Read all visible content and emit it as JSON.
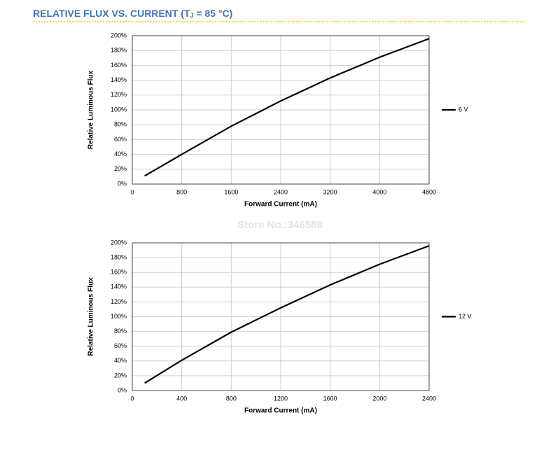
{
  "header": {
    "title_parts": [
      "RELATIVE FLUX VS. CURRENT (T",
      "J",
      " = 85 °C)"
    ]
  },
  "watermark": "Store No.:346588",
  "chart_data": [
    {
      "type": "line",
      "x_label": "Forward Current (mA)",
      "y_label": "Relative Luminous Flux",
      "x": [
        200,
        800,
        1600,
        2400,
        3200,
        4000,
        4800
      ],
      "series": [
        {
          "name": "6 V",
          "color": "#000000",
          "values": [
            11,
            40,
            78,
            112,
            143,
            171,
            196
          ]
        }
      ],
      "xlim": [
        0,
        4800
      ],
      "xticks": [
        0,
        800,
        1600,
        2400,
        3200,
        4000,
        4800
      ],
      "ylim": [
        0,
        200
      ],
      "yticks": [
        {
          "value": 0,
          "label": "0%"
        },
        {
          "value": 20,
          "label": "20%"
        },
        {
          "value": 40,
          "label": "40%"
        },
        {
          "value": 60,
          "label": "60%"
        },
        {
          "value": 80,
          "label": "80%"
        },
        {
          "value": 100,
          "label": "100%"
        },
        {
          "value": 120,
          "label": "120%"
        },
        {
          "value": 140,
          "label": "140%"
        },
        {
          "value": 160,
          "label": "160%"
        },
        {
          "value": 180,
          "label": "180%"
        },
        {
          "value": 200,
          "label": "200%"
        }
      ],
      "grid": true,
      "legend": "right"
    },
    {
      "type": "line",
      "x_label": "Forward Current (mA)",
      "y_label": "Relative Luminous Flux",
      "x": [
        100,
        400,
        800,
        1200,
        1600,
        2000,
        2400
      ],
      "series": [
        {
          "name": "12 V",
          "color": "#000000",
          "values": [
            10,
            41,
            79,
            112,
            143,
            171,
            196
          ]
        }
      ],
      "xlim": [
        0,
        2400
      ],
      "xticks": [
        0,
        400,
        800,
        1200,
        1600,
        2000,
        2400
      ],
      "ylim": [
        0,
        200
      ],
      "yticks": [
        {
          "value": 0,
          "label": "0%"
        },
        {
          "value": 20,
          "label": "20%"
        },
        {
          "value": 40,
          "label": "40%"
        },
        {
          "value": 60,
          "label": "60%"
        },
        {
          "value": 80,
          "label": "80%"
        },
        {
          "value": 100,
          "label": "100%"
        },
        {
          "value": 120,
          "label": "120%"
        },
        {
          "value": 140,
          "label": "140%"
        },
        {
          "value": 160,
          "label": "160%"
        },
        {
          "value": 180,
          "label": "180%"
        },
        {
          "value": 200,
          "label": "200%"
        }
      ],
      "grid": true,
      "legend": "right"
    }
  ]
}
